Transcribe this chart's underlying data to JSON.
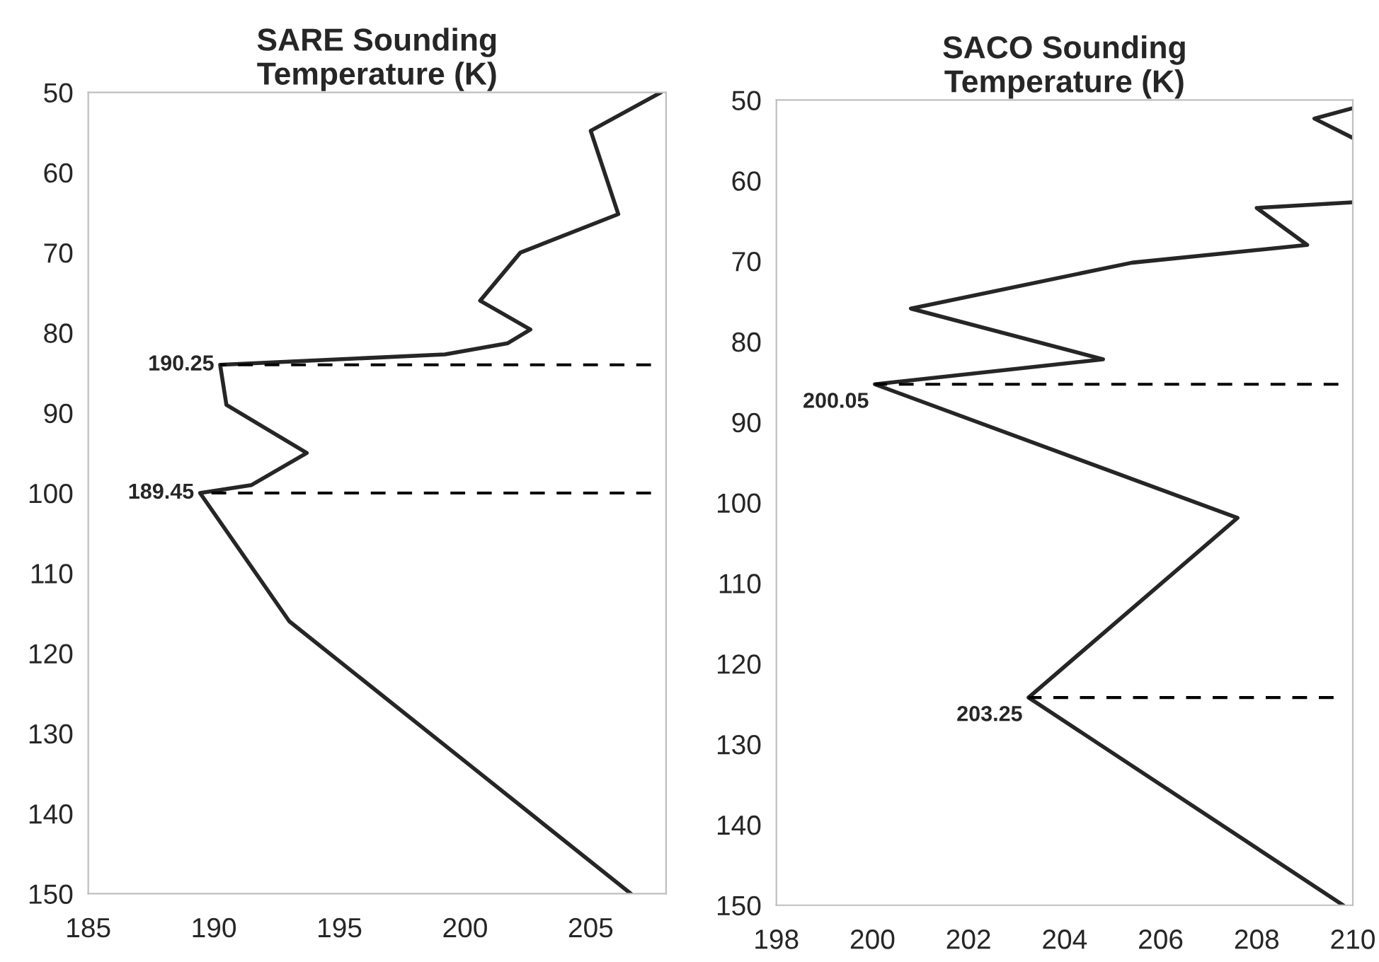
{
  "chart_data": [
    {
      "type": "line",
      "title": "SARE Sounding\nTemperature (K)",
      "xlim": [
        185,
        208
      ],
      "xticks": [
        185,
        190,
        195,
        200,
        205
      ],
      "ylim": [
        150,
        50
      ],
      "yticks": [
        50,
        60,
        70,
        80,
        90,
        100,
        110,
        120,
        130,
        140,
        150
      ],
      "grid": false,
      "legend": false,
      "series": [
        {
          "color": "#262626",
          "x": [
            207.8,
            205.0,
            206.1,
            202.2,
            200.6,
            202.6,
            201.7,
            199.2,
            190.25,
            190.5,
            193.7,
            191.5,
            189.45,
            193.0,
            200.2,
            206.6
          ],
          "values": [
            50,
            54.8,
            65.2,
            70,
            76,
            79.6,
            81.3,
            82.7,
            84,
            89,
            95,
            99,
            100,
            116,
            134,
            150
          ]
        },
        {
          "color": "#000000",
          "line_style": "dashed",
          "x": [
            207.4,
            190.25
          ],
          "values": [
            84,
            84
          ]
        },
        {
          "color": "#000000",
          "line_style": "dashed",
          "x": [
            207.4,
            189.45
          ],
          "values": [
            100,
            100
          ]
        }
      ],
      "annotations": [
        {
          "text": "190.25",
          "x": 190.25,
          "y": 84
        },
        {
          "text": "189.45",
          "x": 189.45,
          "y": 100
        }
      ]
    },
    {
      "type": "line",
      "title": "SACO Sounding\nTemperature (K)",
      "xlim": [
        198,
        210
      ],
      "xticks": [
        198,
        200,
        202,
        204,
        206,
        208,
        210
      ],
      "ylim": [
        150,
        50
      ],
      "yticks": [
        50,
        60,
        70,
        80,
        90,
        100,
        110,
        120,
        130,
        140,
        150
      ],
      "grid": false,
      "legend": false,
      "series": [
        {
          "color": "#262626",
          "x": [
            210.0,
            209.2,
            210.0
          ],
          "values": [
            51,
            52.3,
            54.7
          ]
        },
        {
          "color": "#262626",
          "x": [
            210.0,
            208.0,
            209.05,
            205.4,
            200.8,
            204.8,
            200.05,
            207.6,
            203.25,
            209.8
          ],
          "values": [
            62.7,
            63.4,
            68.0,
            70.2,
            75.9,
            82.2,
            85.3,
            101.9,
            124.2,
            150
          ]
        },
        {
          "color": "#000000",
          "line_style": "dashed",
          "x": [
            209.7,
            200.05
          ],
          "values": [
            85.3,
            85.3
          ]
        },
        {
          "color": "#000000",
          "line_style": "dashed",
          "x": [
            209.6,
            203.25
          ],
          "values": [
            124.2,
            124.2
          ]
        }
      ],
      "annotations": [
        {
          "text": "200.05",
          "x": 200.05,
          "y": 85.3
        },
        {
          "text": "203.25",
          "x": 203.25,
          "y": 124.2
        }
      ]
    }
  ]
}
